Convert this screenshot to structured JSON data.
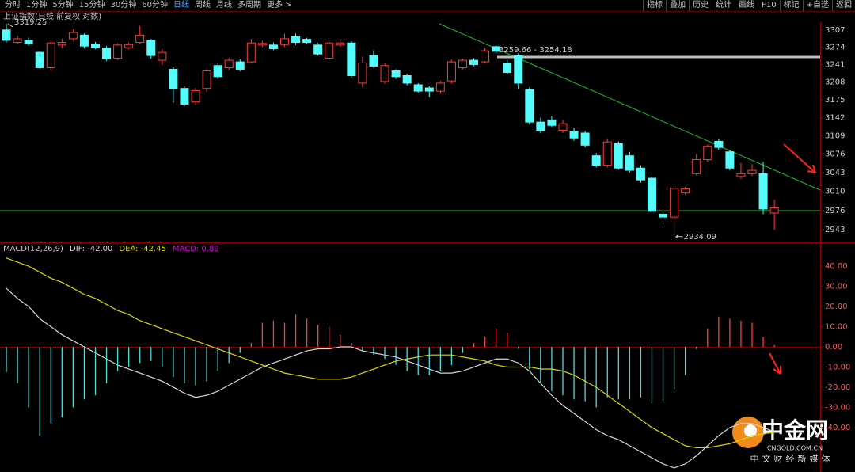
{
  "toolbar": {
    "left": [
      "分时",
      "1分钟",
      "5分钟",
      "15分钟",
      "30分钟",
      "60分钟",
      "日线",
      "周线",
      "月线",
      "多周期",
      "更多 >"
    ],
    "active_index": 6,
    "right": [
      "指标",
      "叠加",
      "历史",
      "统计",
      "画线",
      "F10",
      "标记",
      "+自选",
      "返回"
    ]
  },
  "chart_data": [
    {
      "type": "candlestick",
      "title": "上证指数(日线 前复权 对数)",
      "log_scale": true,
      "up_color": "#ff3c3c",
      "down_color": "#54fcfc",
      "open": [
        3307,
        3283,
        3287,
        3264,
        3235,
        3278,
        3290,
        3297,
        3279,
        3272,
        3253,
        3273,
        3283,
        3287,
        3249,
        3232,
        3196,
        3171,
        3196,
        3239,
        3235,
        3246,
        3246,
        3278,
        3278,
        3279,
        3294,
        3289,
        3278,
        3253,
        3278,
        3282,
        3206,
        3258,
        3209,
        3229,
        3220,
        3203,
        3197,
        3191,
        3210,
        3235,
        3249,
        3246,
        3275,
        3243,
        3258,
        3194,
        3134,
        3138,
        3119,
        3117,
        3114,
        3073,
        3056,
        3095,
        3073,
        3051,
        3033,
        2970,
        2965,
        3007,
        3041,
        3066,
        3099,
        3080,
        3036,
        3041,
        3041,
        2972
      ],
      "high": [
        3319.25,
        3296,
        3292,
        3266,
        3286,
        3290,
        3308,
        3300,
        3284,
        3276,
        3281,
        3283,
        3315,
        3290,
        3270,
        3236,
        3200,
        3197,
        3232,
        3243,
        3253,
        3251,
        3290,
        3286,
        3283,
        3300,
        3300,
        3292,
        3282,
        3287,
        3290,
        3285,
        3256,
        3268,
        3243,
        3232,
        3224,
        3206,
        3200,
        3210,
        3250,
        3252,
        3253,
        3272,
        3277,
        3250,
        3262,
        3198,
        3142,
        3145,
        3138,
        3124,
        3118,
        3078,
        3103,
        3099,
        3080,
        3056,
        3036,
        2975,
        3020,
        3018,
        3076,
        3093,
        3103,
        3083,
        3060,
        3058,
        3062,
        2995
      ],
      "low": [
        3283,
        3280,
        3277,
        3233,
        3230,
        3272,
        3286,
        3272,
        3270,
        3248,
        3250,
        3270,
        3280,
        3252,
        3240,
        3170,
        3163,
        3165,
        3190,
        3214,
        3230,
        3228,
        3243,
        3274,
        3268,
        3275,
        3278,
        3279,
        3258,
        3250,
        3275,
        3215,
        3198,
        3235,
        3205,
        3214,
        3202,
        3188,
        3180,
        3186,
        3206,
        3232,
        3238,
        3243,
        3262,
        3222,
        3195,
        3130,
        3114,
        3125,
        3114,
        3100,
        3088,
        3052,
        3052,
        3048,
        3043,
        3025,
        2970,
        2952,
        2934.09,
        3004,
        3038,
        3062,
        3084,
        3047,
        3032,
        3037,
        2970,
        2943
      ],
      "close": [
        3287,
        3290,
        3280,
        3235,
        3282,
        3283,
        3302,
        3276,
        3273,
        3252,
        3278,
        3279,
        3297,
        3258,
        3264,
        3196,
        3167,
        3192,
        3229,
        3218,
        3249,
        3232,
        3282,
        3281,
        3271,
        3290,
        3283,
        3283,
        3261,
        3282,
        3282,
        3220,
        3244,
        3238,
        3239,
        3218,
        3206,
        3191,
        3191,
        3206,
        3246,
        3249,
        3241,
        3267,
        3266,
        3226,
        3206,
        3134,
        3119,
        3128,
        3131,
        3105,
        3092,
        3056,
        3098,
        3051,
        3047,
        3030,
        2975,
        2965,
        3015,
        3014,
        3066,
        3090,
        3088,
        3051,
        3041,
        3047,
        2979,
        2981
      ],
      "ylim": [
        2923,
        3322
      ],
      "yticks": [
        3307,
        3274,
        3241,
        3208,
        3175,
        3142,
        3109,
        3076,
        3043,
        3010,
        2976,
        2943
      ],
      "annotations": [
        "3319.25",
        "2934.09",
        "3259.66 - 3254.18"
      ]
    },
    {
      "type": "macd",
      "title": "MACD(12,26,9)",
      "series": [
        {
          "name": "DIF: -42.00",
          "color": "#d8d8d8",
          "values": [
            29,
            24,
            20,
            14,
            10,
            6,
            3,
            0,
            -3,
            -6,
            -9,
            -11,
            -13,
            -15,
            -17,
            -20,
            -23,
            -25,
            -24,
            -22,
            -19,
            -16,
            -13,
            -10,
            -8,
            -6,
            -4,
            -2,
            -1,
            -1,
            0,
            0,
            -2,
            -3,
            -4,
            -5,
            -7,
            -9,
            -11,
            -13,
            -13,
            -12,
            -10,
            -8,
            -6,
            -6,
            -8,
            -12,
            -18,
            -24,
            -29,
            -33,
            -37,
            -41,
            -44,
            -46,
            -49,
            -52,
            -55,
            -58,
            -60,
            -58,
            -54,
            -49,
            -44,
            -40,
            -38,
            -38,
            -40,
            -42
          ]
        },
        {
          "name": "DEA: -42.45",
          "color": "#d8d800",
          "values": [
            44,
            42,
            40,
            37,
            34,
            32,
            29,
            26,
            24,
            21,
            18,
            16,
            13,
            11,
            9,
            7,
            5,
            3,
            1,
            -1,
            -3,
            -5,
            -7,
            -9,
            -11,
            -13,
            -14,
            -15,
            -16,
            -16,
            -16,
            -15,
            -13,
            -11,
            -9,
            -7,
            -6,
            -5,
            -4,
            -4,
            -4,
            -5,
            -6,
            -7,
            -9,
            -10,
            -10,
            -10,
            -11,
            -11,
            -12,
            -14,
            -17,
            -20,
            -24,
            -28,
            -32,
            -36,
            -40,
            -43,
            -46,
            -49,
            -50,
            -50,
            -49,
            -48,
            -46,
            -44,
            -43,
            -42.45
          ]
        },
        {
          "name": "MACD: 0.89",
          "color": "#e000e0",
          "pos_color": "#ff3c3c",
          "neg_color": "#54d8d8",
          "values": [
            -12.5,
            -18,
            -30,
            -44,
            -38,
            -35,
            -30,
            -26,
            -24,
            -18,
            -12,
            -10,
            -8,
            -7,
            -10,
            -15,
            -18,
            -19,
            -17,
            -12,
            -8,
            -3,
            2,
            12,
            13,
            12,
            16,
            14,
            11,
            10,
            6,
            2,
            -2,
            -4,
            -6,
            -9,
            -12,
            -14,
            -14,
            -12,
            -9,
            -3,
            2,
            5,
            9,
            7,
            -1,
            -11,
            -18,
            -22,
            -24,
            -26,
            -27,
            -30,
            -25,
            -26,
            -26,
            -25,
            -28,
            -28,
            -21,
            -14,
            -1,
            9,
            15,
            14,
            13,
            12,
            5,
            0.89
          ]
        }
      ],
      "ylim": [
        -62,
        51
      ],
      "yticks": [
        {
          "value": 40,
          "label": "40.00"
        },
        {
          "value": 30,
          "label": "30.00"
        },
        {
          "value": 20,
          "label": "20.00"
        },
        {
          "value": 10,
          "label": "10.00"
        },
        {
          "value": 0,
          "label": "0.00"
        },
        {
          "value": -10,
          "label": "-10.00"
        },
        {
          "value": -20,
          "label": "-20.00"
        },
        {
          "value": -30,
          "label": "-30.00"
        },
        {
          "value": -40,
          "label": "-40.00"
        }
      ]
    }
  ],
  "watermark": {
    "title": "中金网",
    "url": "CNGOLD.COM.CN",
    "slogan": "中文财经新媒体"
  }
}
